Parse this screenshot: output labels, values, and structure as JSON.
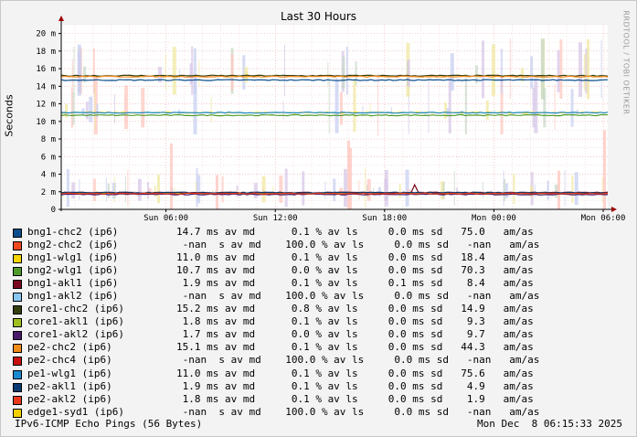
{
  "chart_data": {
    "type": "line",
    "title": "Last 30 Hours",
    "ylabel": "Seconds",
    "watermark": "RRDTOOL / TOBI OETIKER",
    "ylim": [
      0,
      0.021
    ],
    "y_ticks": [
      {
        "value": 0,
        "label": "0"
      },
      {
        "value": 0.002,
        "label": "2 m"
      },
      {
        "value": 0.004,
        "label": "4 m"
      },
      {
        "value": 0.006,
        "label": "6 m"
      },
      {
        "value": 0.008,
        "label": "8 m"
      },
      {
        "value": 0.01,
        "label": "10 m"
      },
      {
        "value": 0.012,
        "label": "12 m"
      },
      {
        "value": 0.014,
        "label": "14 m"
      },
      {
        "value": 0.016,
        "label": "16 m"
      },
      {
        "value": 0.018,
        "label": "18 m"
      },
      {
        "value": 0.02,
        "label": "20 m"
      }
    ],
    "x_ticks": [
      {
        "hour": 6,
        "label": "Sun 06:00"
      },
      {
        "hour": 12,
        "label": "Sun 12:00"
      },
      {
        "hour": 18,
        "label": "Sun 18:00"
      },
      {
        "hour": 24,
        "label": "Mon 00:00"
      },
      {
        "hour": 30,
        "label": "Mon 06:00"
      }
    ],
    "x_range_hours": [
      0.25,
      30.25
    ],
    "grid": true,
    "series": [
      {
        "name": "bng1-chc2 (ip6)",
        "color": "#0b4d8c",
        "value": 0.0147,
        "stats": "14.7 ms av md      0.1 % av ls     0.0 ms sd   75.0   am/as"
      },
      {
        "name": "bng2-chc2 (ip6)",
        "color": "#f04a22",
        "value": null,
        "stats": " -nan  s av md    100.0 % av ls     0.0 ms sd   -nan   am/as"
      },
      {
        "name": "bng1-wlg1 (ip6)",
        "color": "#f5d400",
        "value": 0.011,
        "stats": "11.0 ms av md      0.1 % av ls     0.0 ms sd   18.4   am/as"
      },
      {
        "name": "bng2-wlg1 (ip6)",
        "color": "#4f9a29",
        "value": 0.0107,
        "stats": "10.7 ms av md      0.0 % av ls     0.0 ms sd   70.3   am/as"
      },
      {
        "name": "bng1-akl1 (ip6)",
        "color": "#7a0a1e",
        "value": 0.0019,
        "stats": " 1.9 ms av md      0.1 % av ls     0.1 ms sd    8.4   am/as"
      },
      {
        "name": "bng1-akl2 (ip6)",
        "color": "#88c8f0",
        "value": null,
        "stats": " -nan  s av md    100.0 % av ls     0.0 ms sd   -nan   am/as"
      },
      {
        "name": "core1-chc2 (ip6)",
        "color": "#333f0f",
        "value": 0.0152,
        "stats": "15.2 ms av md      0.8 % av ls     0.0 ms sd   14.9   am/as"
      },
      {
        "name": "core1-akl1 (ip6)",
        "color": "#a0c020",
        "value": 0.0018,
        "stats": " 1.8 ms av md      0.1 % av ls     0.0 ms sd    9.3   am/as"
      },
      {
        "name": "core1-akl2 (ip6)",
        "color": "#4a1a6a",
        "value": 0.0017,
        "stats": " 1.7 ms av md      0.0 % av ls     0.0 ms sd    9.7   am/as"
      },
      {
        "name": "pe2-chc2 (ip6)",
        "color": "#f08a1a",
        "value": 0.0151,
        "stats": "15.1 ms av md      0.1 % av ls     0.0 ms sd   44.3   am/as"
      },
      {
        "name": "pe2-chc4 (ip6)",
        "color": "#c81010",
        "value": null,
        "stats": " -nan  s av md    100.0 % av ls     0.0 ms sd   -nan   am/as"
      },
      {
        "name": "pe1-wlg1 (ip6)",
        "color": "#1a8ad0",
        "value": 0.011,
        "stats": "11.0 ms av md      0.1 % av ls     0.0 ms sd   75.6   am/as"
      },
      {
        "name": "pe2-akl1 (ip6)",
        "color": "#0a3a70",
        "value": 0.0019,
        "stats": " 1.9 ms av md      0.1 % av ls     0.0 ms sd    4.9   am/as"
      },
      {
        "name": "pe2-akl2 (ip6)",
        "color": "#e83a1a",
        "value": 0.0018,
        "stats": " 1.8 ms av md      0.1 % av ls     0.0 ms sd    1.9   am/as"
      },
      {
        "name": "edge1-syd1 (ip6)",
        "color": "#f5d000",
        "value": null,
        "stats": " -nan  s av md    100.0 % av ls     0.0 ms sd   -nan   am/as"
      }
    ]
  },
  "footer": {
    "left": "IPv6-ICMP Echo Pings (56 Bytes)",
    "right": "Mon Dec  8 06:15:33 2025"
  }
}
